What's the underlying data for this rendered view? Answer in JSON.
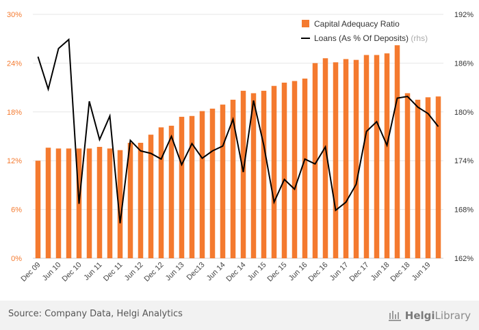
{
  "chart_data": {
    "type": "bar",
    "categories": [
      "Dec 09",
      "Mar 10",
      "Jun 10",
      "Sep 10",
      "Dec 10",
      "Mar 11",
      "Jun 11",
      "Sep 11",
      "Dec 11",
      "Mar 12",
      "Jun 12",
      "Sep 12",
      "Dec 12",
      "Mar 13",
      "Jun 13",
      "Sep 13",
      "Dec 13",
      "Mar 14",
      "Jun 14",
      "Sep 14",
      "Dec 14",
      "Mar 15",
      "Jun 15",
      "Sep 15",
      "Dec 15",
      "Mar 16",
      "Jun 16",
      "Sep 16",
      "Dec 16",
      "Mar 17",
      "Jun 17",
      "Sep 17",
      "Dec 17",
      "Mar 18",
      "Jun 18",
      "Sep 18",
      "Dec 18",
      "Mar 19",
      "Jun 19",
      "Sep 19"
    ],
    "x_tick_labels": [
      "Dec 09",
      "Jun 10",
      "Dec 10",
      "Jun 11",
      "Dec 11",
      "Jun 12",
      "Dec 12",
      "Jun 13",
      "Dec13",
      "Jun 14",
      "Dec 14",
      "Jun 15",
      "Dec 15",
      "Jun 16",
      "Dec 16",
      "Jun 17",
      "Dec 17",
      "Jun 18",
      "Dec 18",
      "Jun 19"
    ],
    "series": [
      {
        "name": "Capital Adequacy Ratio",
        "type": "bar",
        "axis": "left",
        "color": "#f47a2f",
        "values": [
          12.0,
          13.6,
          13.5,
          13.5,
          13.5,
          13.5,
          13.7,
          13.5,
          13.3,
          14.2,
          14.2,
          15.2,
          16.1,
          16.3,
          17.4,
          17.5,
          18.1,
          18.4,
          18.9,
          19.5,
          20.6,
          20.3,
          20.6,
          21.2,
          21.6,
          21.8,
          22.1,
          24.0,
          24.6,
          24.1,
          24.5,
          24.4,
          25.0,
          25.0,
          25.2,
          26.2,
          20.3,
          19.5,
          19.8,
          19.9
        ]
      },
      {
        "name": "Loans (As % Of Deposits)",
        "name_suffix": "(rhs)",
        "type": "line",
        "axis": "right",
        "color": "#000000",
        "values": [
          186.8,
          182.8,
          187.8,
          188.9,
          168.7,
          181.3,
          176.6,
          179.5,
          166.3,
          176.5,
          175.2,
          174.9,
          174.2,
          177.0,
          173.5,
          176.1,
          174.3,
          175.2,
          175.8,
          179.1,
          172.6,
          181.4,
          175.9,
          168.9,
          171.7,
          170.5,
          174.2,
          173.6,
          175.7,
          167.9,
          168.9,
          171.1,
          177.6,
          178.8,
          175.9,
          181.7,
          181.9,
          180.6,
          179.8,
          178.2
        ]
      }
    ],
    "y_left": {
      "min": 0,
      "max": 30,
      "ticks": [
        0,
        6,
        12,
        18,
        24,
        30
      ],
      "unit": "%"
    },
    "y_right": {
      "min": 162,
      "max": 192,
      "ticks": [
        162,
        168,
        174,
        180,
        186,
        192
      ],
      "unit": "%"
    },
    "legend_position": "top-right",
    "grid": "horizontal",
    "colors": {
      "left_axis_text": "#f47a2f",
      "grid": "#e6e6e6"
    }
  },
  "footer": {
    "source": "Source: Company Data, Helgi Analytics",
    "logo_bold": "Helgi",
    "logo_light": "Library"
  }
}
